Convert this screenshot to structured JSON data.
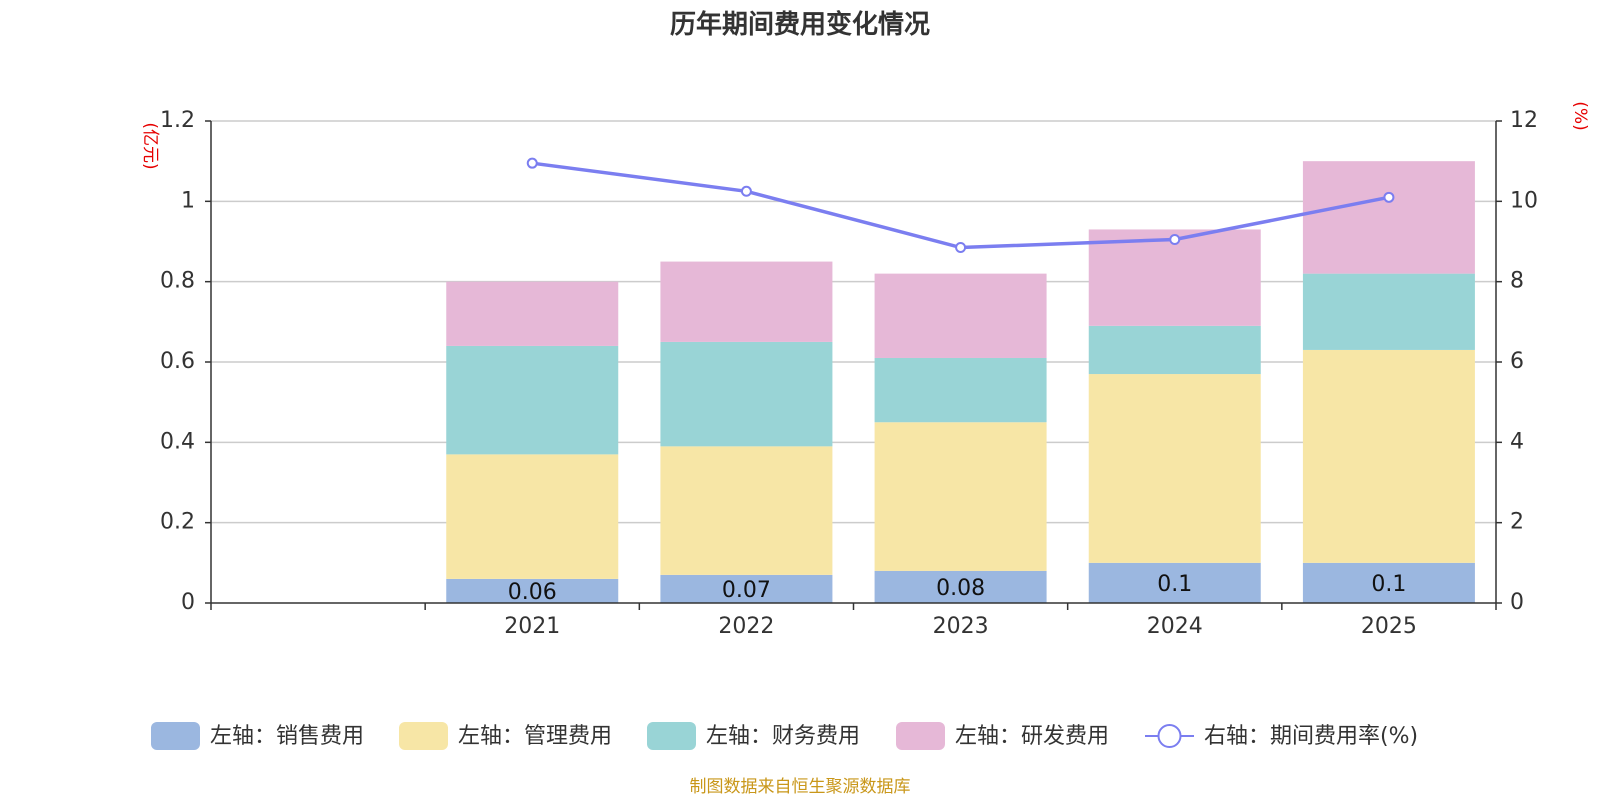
{
  "chart_data": {
    "type": "bar",
    "stacked": true,
    "title": "历年期间费用变化情况",
    "categories": [
      "2021",
      "2022",
      "2023",
      "2024",
      "2025"
    ],
    "series": [
      {
        "name": "左轴：销售费用",
        "axis": "left",
        "color": "#9bb7e0",
        "values": [
          0.06,
          0.07,
          0.08,
          0.1,
          0.1
        ],
        "labels": [
          "0.06",
          "0.07",
          "0.08",
          "0.1",
          "0.1"
        ]
      },
      {
        "name": "左轴：管理费用",
        "axis": "left",
        "color": "#f7e6a6",
        "values": [
          0.31,
          0.32,
          0.37,
          0.47,
          0.53
        ]
      },
      {
        "name": "左轴：财务费用",
        "axis": "left",
        "color": "#99d4d6",
        "values": [
          0.27,
          0.26,
          0.16,
          0.12,
          0.19
        ]
      },
      {
        "name": "左轴：研发费用",
        "axis": "left",
        "color": "#e6b8d7",
        "values": [
          0.16,
          0.2,
          0.21,
          0.24,
          0.28
        ]
      },
      {
        "name": "右轴：期间费用率(%)",
        "axis": "right",
        "type": "line",
        "color": "#7b7ef0",
        "values": [
          10.95,
          10.25,
          8.85,
          9.05,
          10.1
        ]
      }
    ],
    "y_left": {
      "label": "(亿元)",
      "min": 0,
      "max": 1.2,
      "ticks": [
        "0",
        "0.2",
        "0.4",
        "0.6",
        "0.8",
        "1",
        "1.2"
      ]
    },
    "y_right": {
      "label": "(%)",
      "min": 0,
      "max": 12,
      "ticks": [
        "0",
        "2",
        "4",
        "6",
        "8",
        "10",
        "12"
      ]
    },
    "grid": true,
    "legend_position": "bottom"
  },
  "source_note": "制图数据来自恒生聚源数据库"
}
